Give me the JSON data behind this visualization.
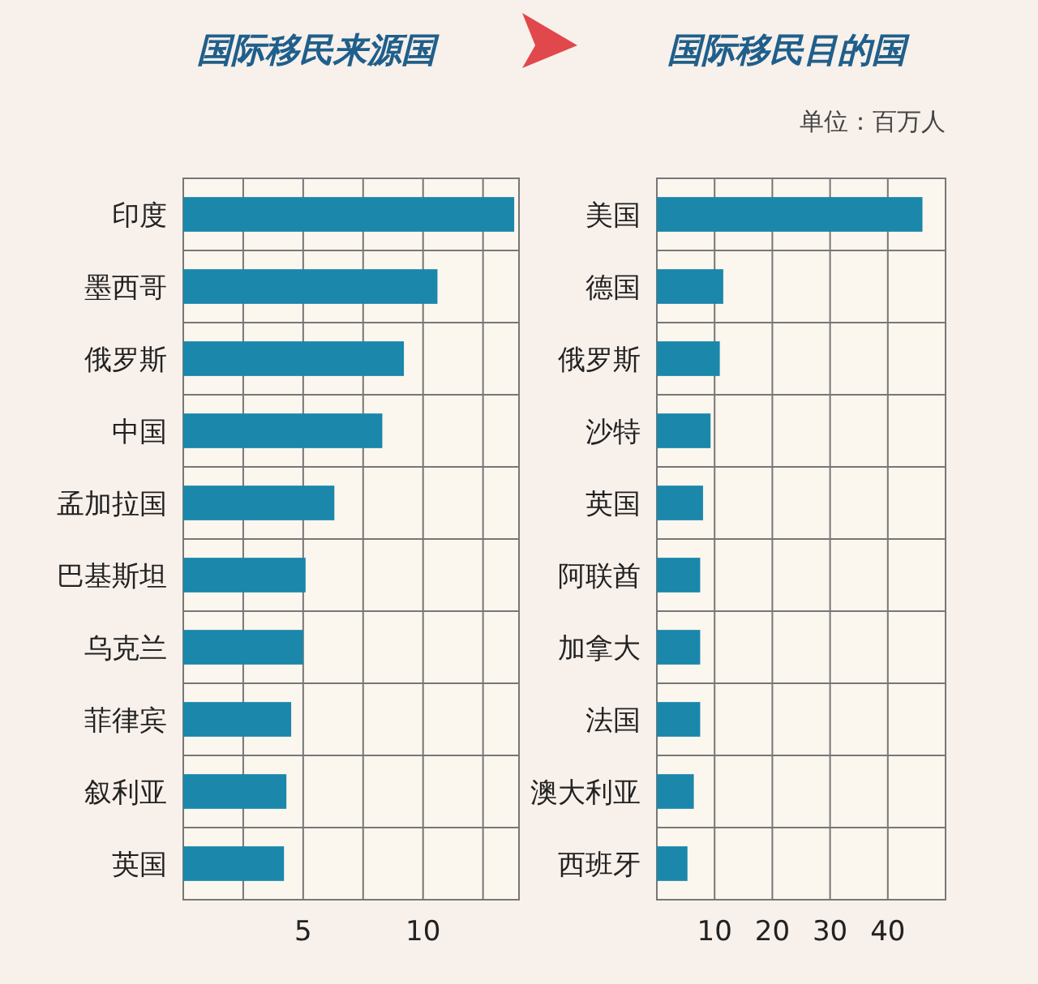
{
  "chart_data": [
    {
      "type": "bar",
      "orientation": "horizontal",
      "title": "国际移民来源国",
      "categories": [
        "印度",
        "墨西哥",
        "俄罗斯",
        "中国",
        "孟加拉国",
        "巴基斯坦",
        "乌克兰",
        "菲律宾",
        "叙利亚",
        "英国"
      ],
      "series": [
        {
          "color": "#1a87ab",
          "values": [
            13.8,
            10.6,
            9.2,
            8.3,
            6.3,
            5.1,
            5.0,
            4.5,
            4.3,
            4.2
          ]
        }
      ],
      "xlim": [
        0,
        14
      ],
      "xticks": [
        {
          "value": 2.5,
          "label": null
        },
        5,
        {
          "value": 7.5,
          "label": null
        },
        10,
        {
          "value": 12.5,
          "label": null
        }
      ],
      "grid": true
    },
    {
      "type": "bar",
      "orientation": "horizontal",
      "title": "国际移民目的国",
      "annotations": [
        "单位：百万人"
      ],
      "categories": [
        "美国",
        "德国",
        "俄罗斯",
        "沙特",
        "英国",
        "阿联酋",
        "加拿大",
        "法国",
        "澳大利亚",
        "西班牙"
      ],
      "series": [
        {
          "color": "#1a87ab",
          "values": [
            46,
            11.5,
            10.9,
            9.3,
            8.0,
            7.5,
            7.5,
            7.5,
            6.4,
            5.3
          ]
        }
      ],
      "xlim": [
        0,
        50
      ],
      "xticks": [
        10,
        20,
        30,
        40
      ],
      "grid": true
    }
  ]
}
